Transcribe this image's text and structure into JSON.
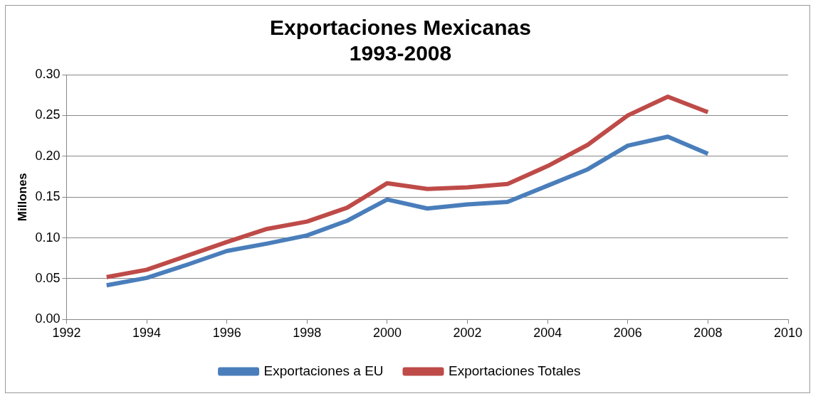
{
  "chart_data": {
    "type": "line",
    "title": "Exportaciones Mexicanas\n1993-2008",
    "ylabel": "Millones",
    "x": [
      1993,
      1994,
      1995,
      1996,
      1997,
      1998,
      1999,
      2000,
      2001,
      2002,
      2003,
      2004,
      2005,
      2006,
      2007,
      2008
    ],
    "series": [
      {
        "name": "Exportaciones a EU",
        "color": "#4a7ebb",
        "values": [
          0.042,
          0.051,
          0.067,
          0.084,
          0.093,
          0.103,
          0.121,
          0.147,
          0.136,
          0.141,
          0.144,
          0.164,
          0.184,
          0.213,
          0.224,
          0.203
        ]
      },
      {
        "name": "Exportaciones Totales",
        "color": "#be4b48",
        "values": [
          0.052,
          0.061,
          0.078,
          0.095,
          0.111,
          0.12,
          0.137,
          0.167,
          0.16,
          0.162,
          0.166,
          0.188,
          0.214,
          0.25,
          0.273,
          0.254
        ]
      }
    ],
    "xlim": [
      1992,
      2010
    ],
    "xticks": [
      1992,
      1994,
      1996,
      1998,
      2000,
      2002,
      2004,
      2006,
      2008,
      2010
    ],
    "ylim": [
      0,
      0.3
    ],
    "yticks": [
      {
        "value": 0,
        "label": "0.00"
      },
      {
        "value": 0.05,
        "label": "0.05"
      },
      {
        "value": 0.1,
        "label": "0.10"
      },
      {
        "value": 0.15,
        "label": "0.15"
      },
      {
        "value": 0.2,
        "label": "0.20"
      },
      {
        "value": 0.25,
        "label": "0.25"
      },
      {
        "value": 0.3,
        "label": "0.30"
      }
    ],
    "grid": "y",
    "legend": "bottom",
    "marker": "none",
    "line_style": "solid"
  }
}
